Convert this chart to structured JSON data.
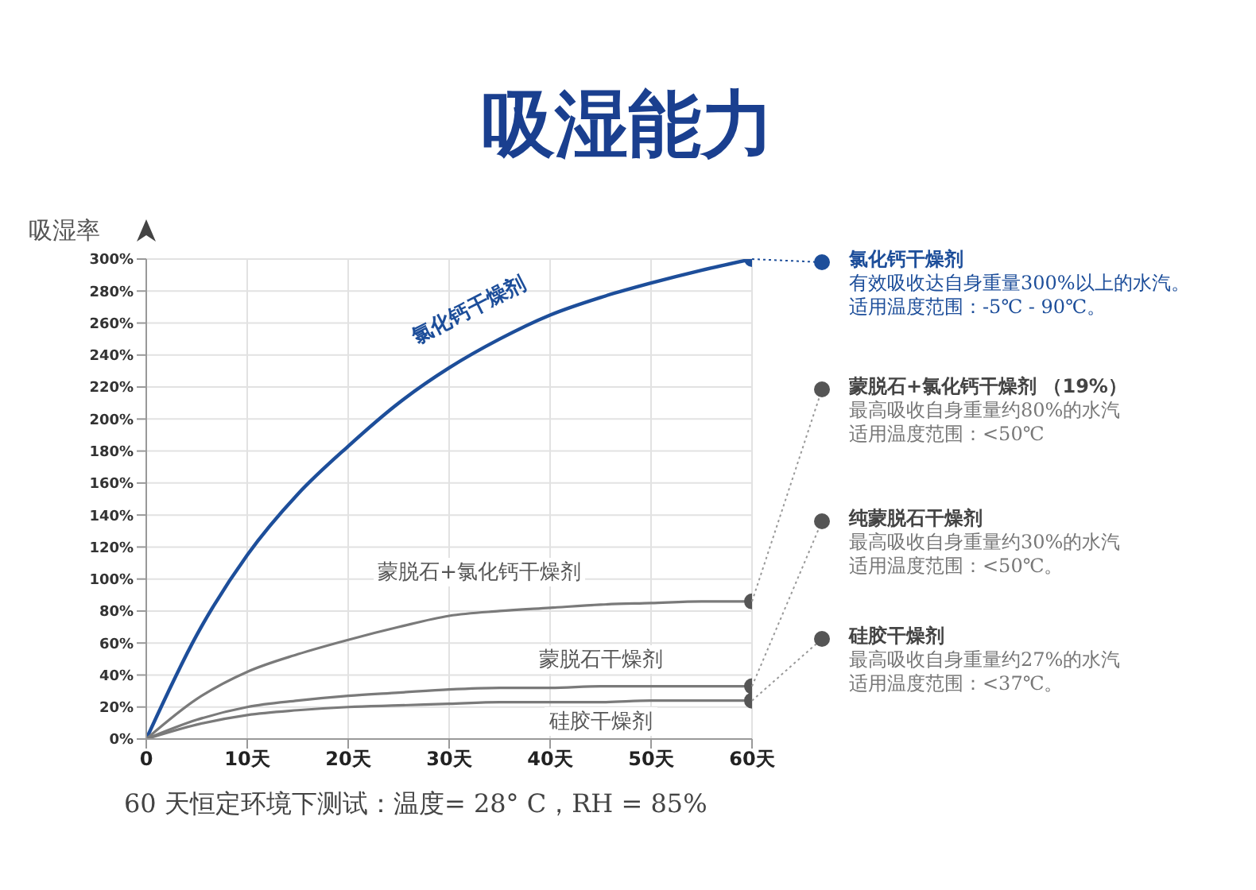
{
  "chart_data": {
    "type": "line",
    "title": "吸湿能力",
    "ylabel": "吸湿率",
    "x": [
      0,
      5,
      10,
      15,
      20,
      25,
      30,
      35,
      40,
      45,
      50,
      55,
      60
    ],
    "series": [
      {
        "name": "氯化钙干燥剂",
        "color": "#1d4e9a",
        "values": [
          0,
          65,
          115,
          153,
          183,
          210,
          232,
          250,
          265,
          276,
          285,
          293,
          300
        ]
      },
      {
        "name": "蒙脱石+氯化钙干燥剂",
        "color": "#7a7a7a",
        "values": [
          0,
          25,
          42,
          53,
          62,
          70,
          77,
          80,
          82,
          84,
          85,
          86,
          86
        ]
      },
      {
        "name": "蒙脱石干燥剂",
        "color": "#7a7a7a",
        "values": [
          0,
          12,
          20,
          24,
          27,
          29,
          31,
          32,
          32,
          33,
          33,
          33,
          33
        ]
      },
      {
        "name": "硅胶干燥剂",
        "color": "#7a7a7a",
        "values": [
          0,
          9,
          15,
          18,
          20,
          21,
          22,
          23,
          23,
          23,
          24,
          24,
          24
        ]
      }
    ],
    "xlim": [
      0,
      60
    ],
    "xticks": [
      0,
      {
        "value": 10,
        "label": "10天"
      },
      {
        "value": 20,
        "label": "20天"
      },
      {
        "value": 30,
        "label": "30天"
      },
      {
        "value": 40,
        "label": "40天"
      },
      {
        "value": 50,
        "label": "50天"
      },
      {
        "value": 60,
        "label": "60天"
      }
    ],
    "ylim": [
      0,
      300
    ],
    "yticks": [
      {
        "value": 0,
        "label": "0%"
      },
      {
        "value": 20,
        "label": "20%"
      },
      {
        "value": 40,
        "label": "40%"
      },
      {
        "value": 60,
        "label": "60%"
      },
      {
        "value": 80,
        "label": "80%"
      },
      {
        "value": 100,
        "label": "100%"
      },
      {
        "value": 120,
        "label": "120%"
      },
      {
        "value": 140,
        "label": "140%"
      },
      {
        "value": 160,
        "label": "160%"
      },
      {
        "value": 180,
        "label": "180%"
      },
      {
        "value": 200,
        "label": "200%"
      },
      {
        "value": 220,
        "label": "220%"
      },
      {
        "value": 240,
        "label": "240%"
      },
      {
        "value": 260,
        "label": "260%"
      },
      {
        "value": 280,
        "label": "280%"
      },
      {
        "value": 300,
        "label": "300%"
      }
    ],
    "grid": true,
    "legend": false,
    "annotations": [
      "氯化钙干燥剂",
      "有效吸收达自身重量300%以上的水汽。",
      "适用温度范围：-5℃ - 90℃。",
      "蒙脱石+氯化钙干燥剂 （19%）",
      "最高吸收自身重量约80%的水汽",
      "适用温度范围：<50℃",
      "纯蒙脱石干燥剂",
      "最高吸收自身重量约30%的水汽",
      "适用温度范围：<50℃。",
      "硅胶干燥剂",
      "最高吸收自身重量约27%的水汽",
      "适用温度范围：<37℃。",
      "60 天恒定环境下测试：温度= 28° C，RH = 85%"
    ]
  }
}
